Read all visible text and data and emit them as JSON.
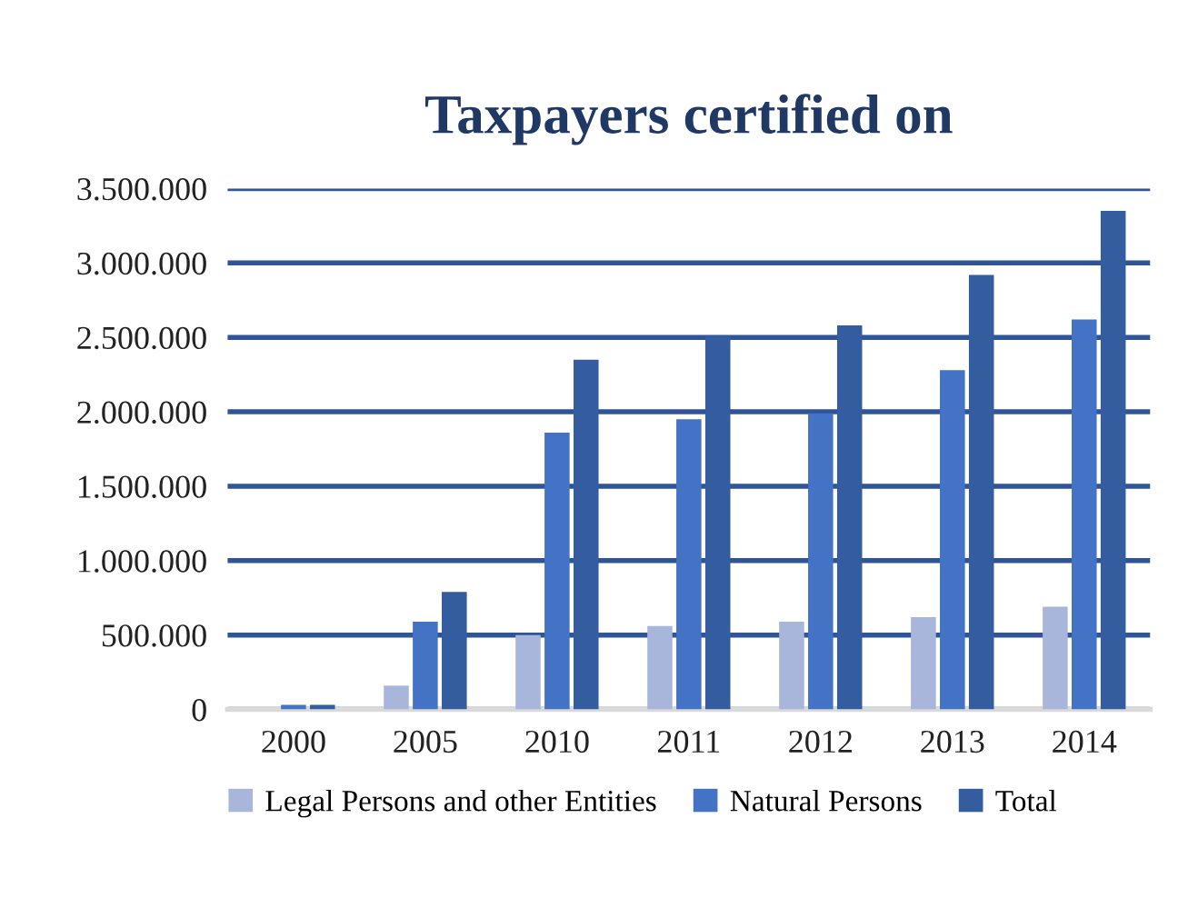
{
  "chart_data": {
    "type": "bar",
    "title": "Taxpayers certified on",
    "categories": [
      "2000",
      "2005",
      "2010",
      "2011",
      "2012",
      "2013",
      "2014"
    ],
    "series": [
      {
        "name": "Legal Persons and other Entities",
        "color": "#a9b6dc",
        "values": [
          null,
          160000,
          500000,
          560000,
          590000,
          620000,
          690000
        ]
      },
      {
        "name": "Natural Persons",
        "color": "#4472c4",
        "values": [
          30000,
          590000,
          1860000,
          1950000,
          1990000,
          2280000,
          2620000
        ]
      },
      {
        "name": "Total",
        "color": "#345da0",
        "values": [
          30000,
          790000,
          2350000,
          2510000,
          2580000,
          2920000,
          3350000
        ]
      }
    ],
    "ylim": [
      0,
      3500000
    ],
    "yticks": [
      {
        "value": 0,
        "label": "0"
      },
      {
        "value": 500000,
        "label": "500.000"
      },
      {
        "value": 1000000,
        "label": "1.000.000"
      },
      {
        "value": 1500000,
        "label": "1.500.000"
      },
      {
        "value": 2000000,
        "label": "2.000.000"
      },
      {
        "value": 2500000,
        "label": "2.500.000"
      },
      {
        "value": 3000000,
        "label": "3.000.000"
      },
      {
        "value": 3500000,
        "label": "3.500.000"
      }
    ],
    "grid": "y",
    "legend": "bottom"
  }
}
